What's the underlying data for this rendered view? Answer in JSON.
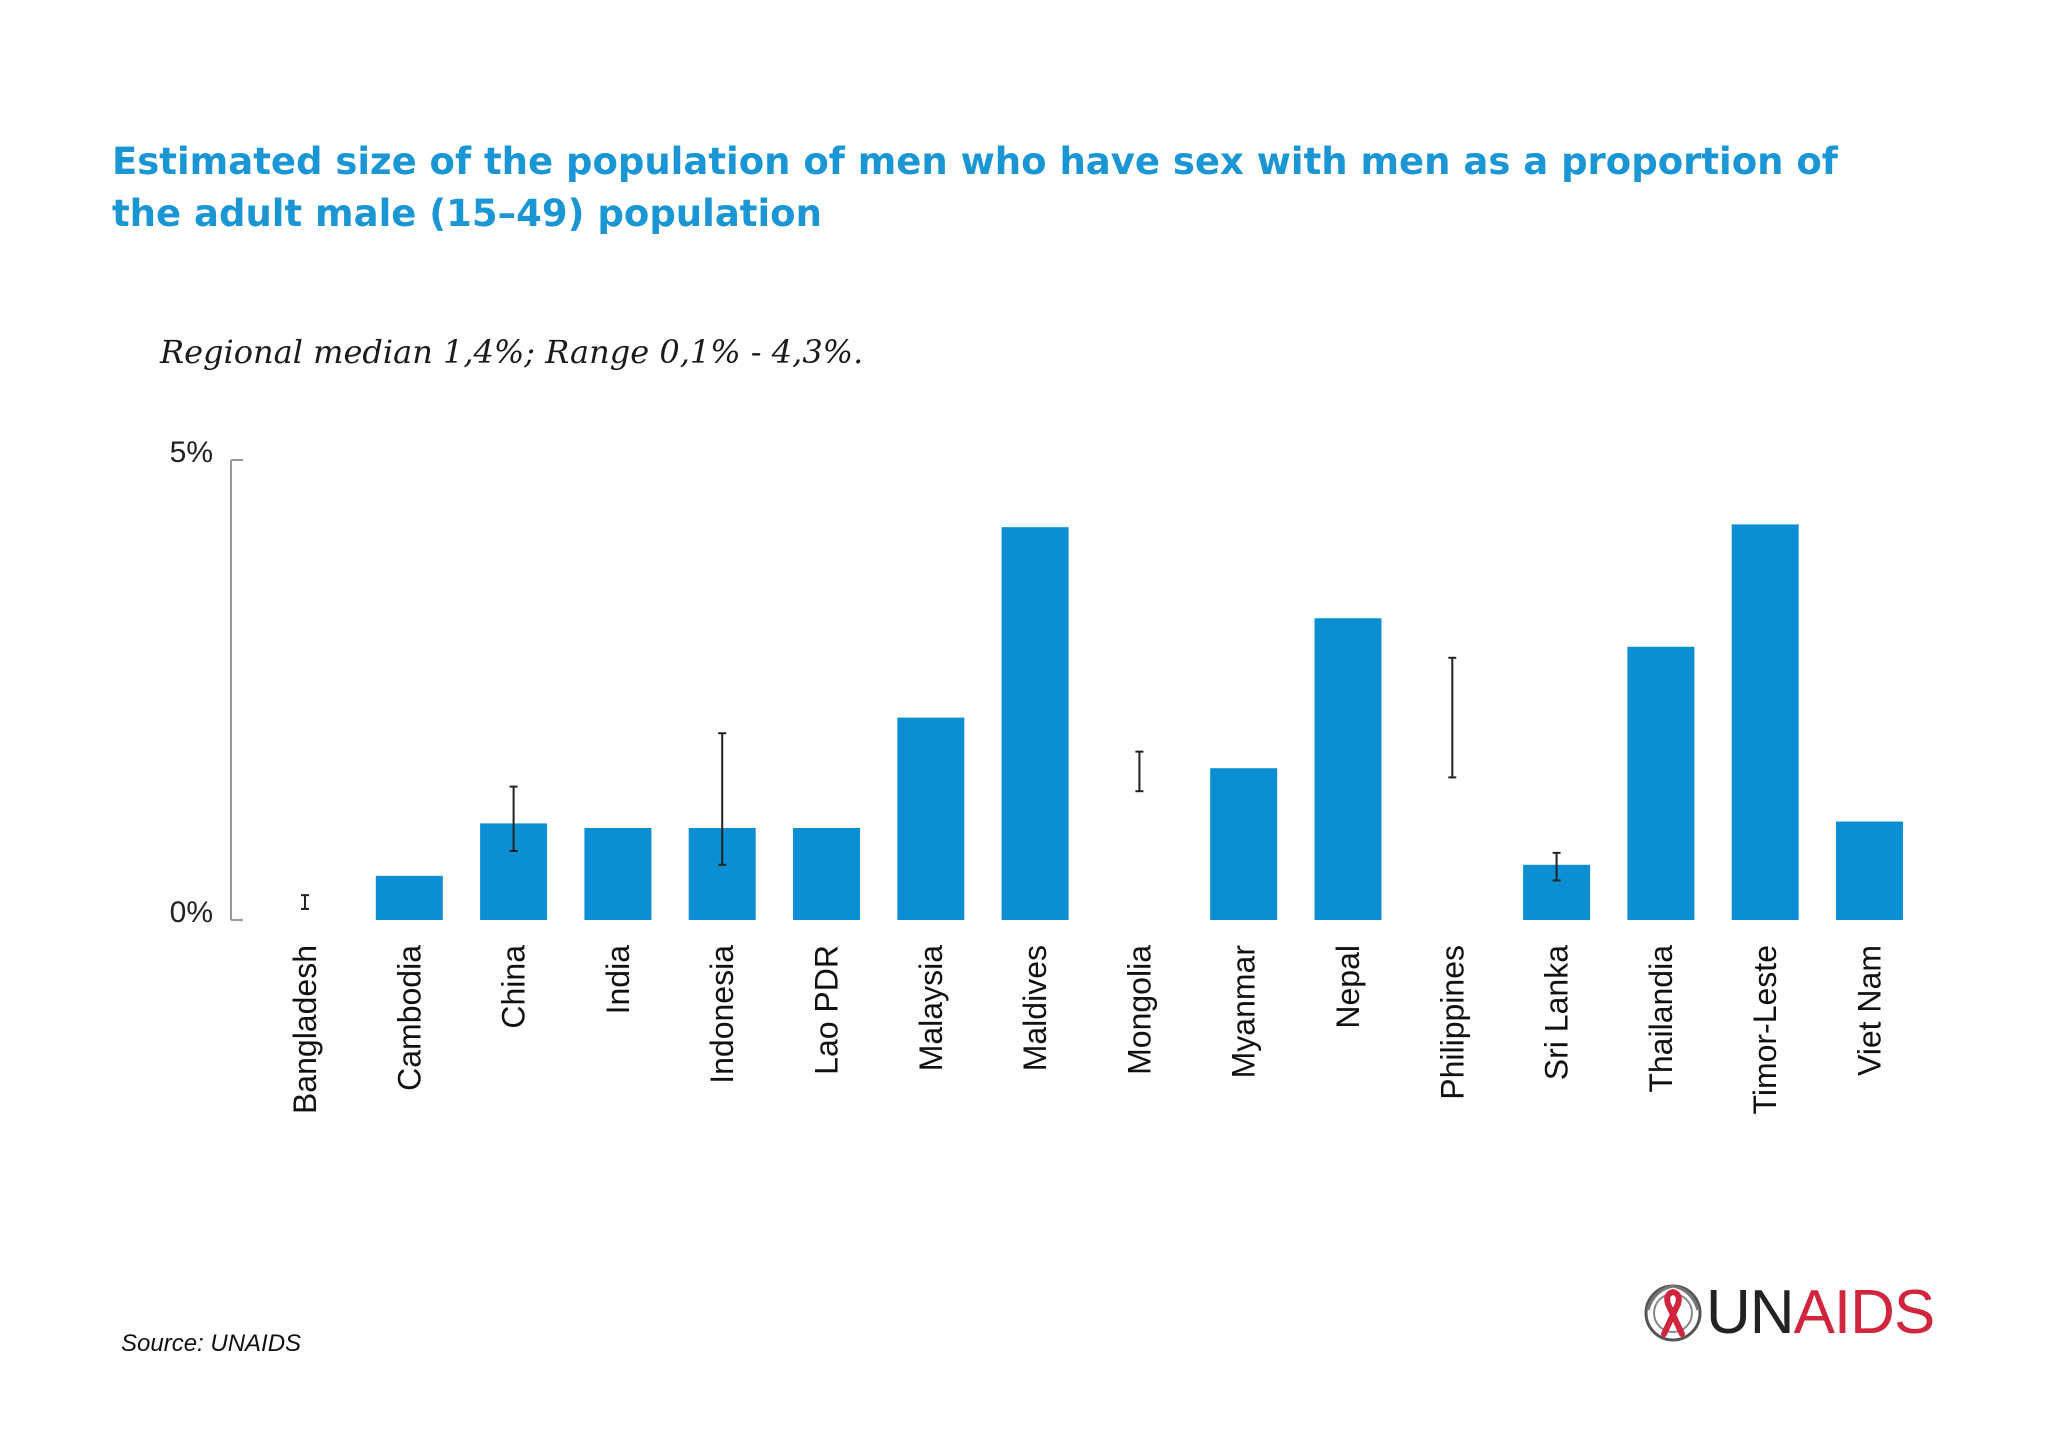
{
  "title": "Estimated size of the population of men who have sex with men as a proportion of the adult male (15–49) population",
  "subtitle": "Regional median 1,4%; Range 0,1% - 4,3%.",
  "source": "Source: UNAIDS",
  "logo": {
    "text_un": "UN",
    "text_aids": "AIDS",
    "icon": "unaids-ribbon-emblem-icon"
  },
  "colors": {
    "title": "#1a96d4",
    "bar": "#0b8fd2",
    "errorbar": "#222222",
    "axis": "#999999",
    "logo_red": "#d1253e"
  },
  "chart_data": {
    "type": "bar",
    "yticks": [
      "5%",
      "0%"
    ],
    "ylim": [
      0,
      5
    ],
    "categories": [
      "Bangladesh",
      "Cambodia",
      "China",
      "India",
      "Indonesia",
      "Lao PDR",
      "Malaysia",
      "Maldives",
      "Mongolia",
      "Myanmar",
      "Nepal",
      "Philippines",
      "Sri Lanka",
      "Thailandia",
      "Timor-Leste",
      "Viet Nam"
    ],
    "values": [
      null,
      0.48,
      1.05,
      1.0,
      1.0,
      1.0,
      2.2,
      4.27,
      null,
      1.65,
      3.28,
      null,
      0.6,
      2.97,
      4.3,
      1.07
    ],
    "error_ranges": [
      [
        0.12,
        0.27
      ],
      null,
      [
        0.75,
        1.45
      ],
      null,
      [
        0.6,
        2.03
      ],
      null,
      null,
      null,
      [
        1.4,
        1.83
      ],
      null,
      null,
      [
        1.55,
        2.85
      ],
      [
        0.43,
        0.73
      ],
      null,
      null,
      null
    ]
  }
}
